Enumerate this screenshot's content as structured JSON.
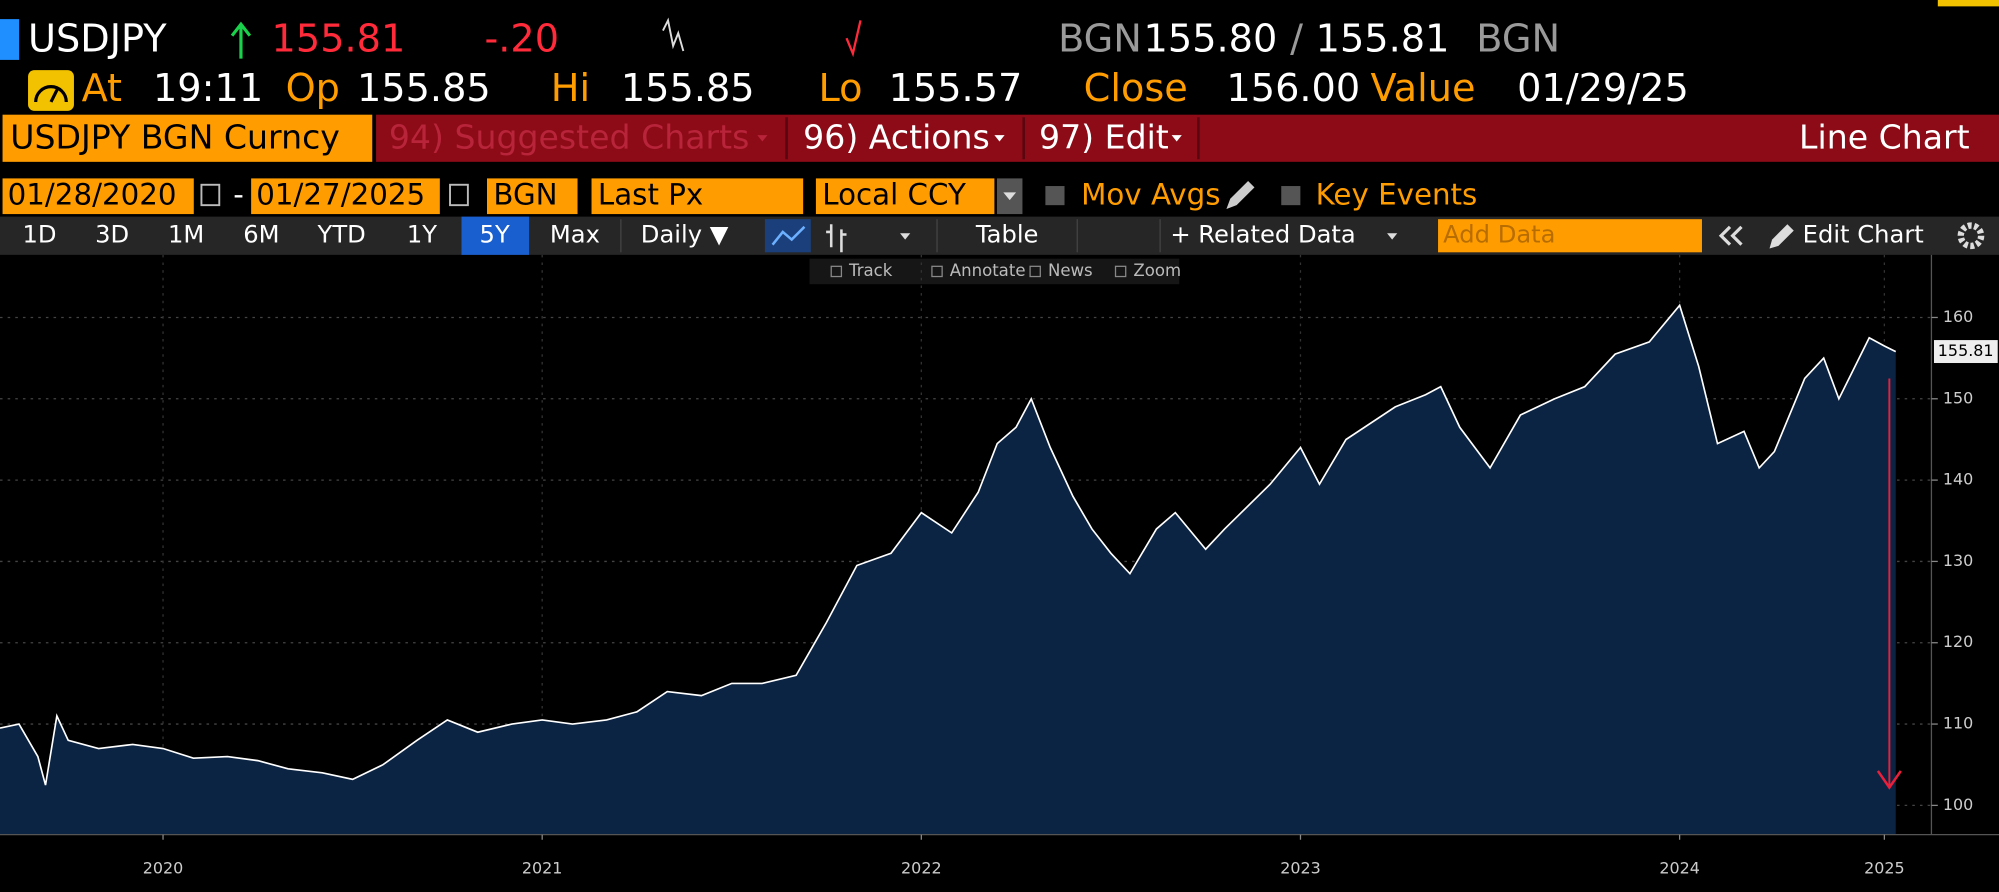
{
  "header": {
    "ticker": "USDJPY",
    "last": "155.81",
    "change": "-.20",
    "bid_source": "BGN",
    "bid": "155.80",
    "separator": "/",
    "ask": "155.81",
    "ask_source": "BGN"
  },
  "quote": {
    "at_label": "At",
    "time": "19:11",
    "open_label": "Op",
    "open": "155.85",
    "high_label": "Hi",
    "high": "155.85",
    "low_label": "Lo",
    "low": "155.57",
    "close_label": "Close",
    "close": "156.00",
    "value_label": "Value",
    "value_date": "01/29/25"
  },
  "menu": {
    "security": "USDJPY BGN Curncy",
    "suggested": "94) Suggested Charts",
    "actions": "96) Actions",
    "edit": "97) Edit",
    "chart_kind": "Line Chart"
  },
  "settings": {
    "start_date": "01/28/2020",
    "dash": "-",
    "end_date": "01/27/2025",
    "source": "BGN",
    "field": "Last Px",
    "currency": "Local CCY",
    "mov_avgs": "Mov Avgs",
    "key_events": "Key Events"
  },
  "toolbar": {
    "periods": [
      "1D",
      "3D",
      "1M",
      "6M",
      "YTD",
      "1Y",
      "5Y",
      "Max"
    ],
    "frequency": "Daily ▼",
    "table": "Table",
    "related": "+ Related Data",
    "add_data": "Add Data",
    "edit_chart": "Edit Chart"
  },
  "chart_tools": [
    "Track",
    "Annotate",
    "News",
    "Zoom"
  ],
  "chart_data": {
    "type": "area",
    "color": "#ffffff",
    "fill": "#0c2444",
    "x": [
      2020.07,
      2020.12,
      2020.17,
      2020.19,
      2020.22,
      2020.25,
      2020.33,
      2020.42,
      2020.5,
      2020.58,
      2020.67,
      2020.75,
      2020.83,
      2020.92,
      2021.0,
      2021.08,
      2021.17,
      2021.25,
      2021.33,
      2021.42,
      2021.5,
      2021.58,
      2021.67,
      2021.75,
      2021.83,
      2021.92,
      2022.0,
      2022.08,
      2022.17,
      2022.25,
      2022.33,
      2022.42,
      2022.5,
      2022.58,
      2022.65,
      2022.7,
      2022.75,
      2022.79,
      2022.84,
      2022.9,
      2022.95,
      2023.0,
      2023.05,
      2023.12,
      2023.17,
      2023.25,
      2023.3,
      2023.42,
      2023.5,
      2023.55,
      2023.62,
      2023.75,
      2023.83,
      2023.87,
      2023.92,
      2024.0,
      2024.08,
      2024.17,
      2024.25,
      2024.33,
      2024.42,
      2024.5,
      2024.55,
      2024.6,
      2024.67,
      2024.71,
      2024.75,
      2024.83,
      2024.88,
      2024.92,
      2025.0,
      2025.04,
      2025.07
    ],
    "y": [
      109.5,
      110.0,
      106.0,
      102.5,
      111.0,
      108.0,
      107.0,
      107.5,
      107.0,
      105.8,
      106.0,
      105.5,
      104.5,
      104.0,
      103.2,
      105.0,
      108.0,
      110.5,
      109.0,
      110.0,
      110.5,
      110.0,
      110.5,
      111.5,
      114.0,
      113.5,
      115.0,
      115.0,
      116.0,
      122.5,
      129.5,
      131.0,
      136.0,
      133.5,
      138.5,
      144.5,
      146.5,
      150.0,
      144.0,
      138.0,
      134.0,
      131.0,
      128.5,
      134.0,
      136.0,
      131.5,
      134.0,
      139.5,
      144.0,
      139.5,
      145.0,
      149.0,
      150.5,
      151.5,
      146.5,
      141.5,
      148.0,
      150.0,
      151.5,
      155.5,
      157.0,
      161.5,
      154.0,
      144.5,
      146.0,
      141.5,
      143.5,
      152.5,
      155.0,
      150.0,
      157.5,
      156.5,
      155.81
    ],
    "xlim": [
      2020.07,
      2025.07
    ],
    "ylim": [
      96.4,
      167.7
    ],
    "xticks": [
      {
        "value": 2020.5,
        "label": "2020"
      },
      {
        "value": 2021.5,
        "label": "2021"
      },
      {
        "value": 2022.5,
        "label": "2022"
      },
      {
        "value": 2023.5,
        "label": "2023"
      },
      {
        "value": 2024.5,
        "label": "2024"
      },
      {
        "value": 2025.04,
        "label": "2025"
      }
    ],
    "yticks": [
      100,
      110,
      120,
      130,
      140,
      150,
      160
    ],
    "grid": true
  }
}
